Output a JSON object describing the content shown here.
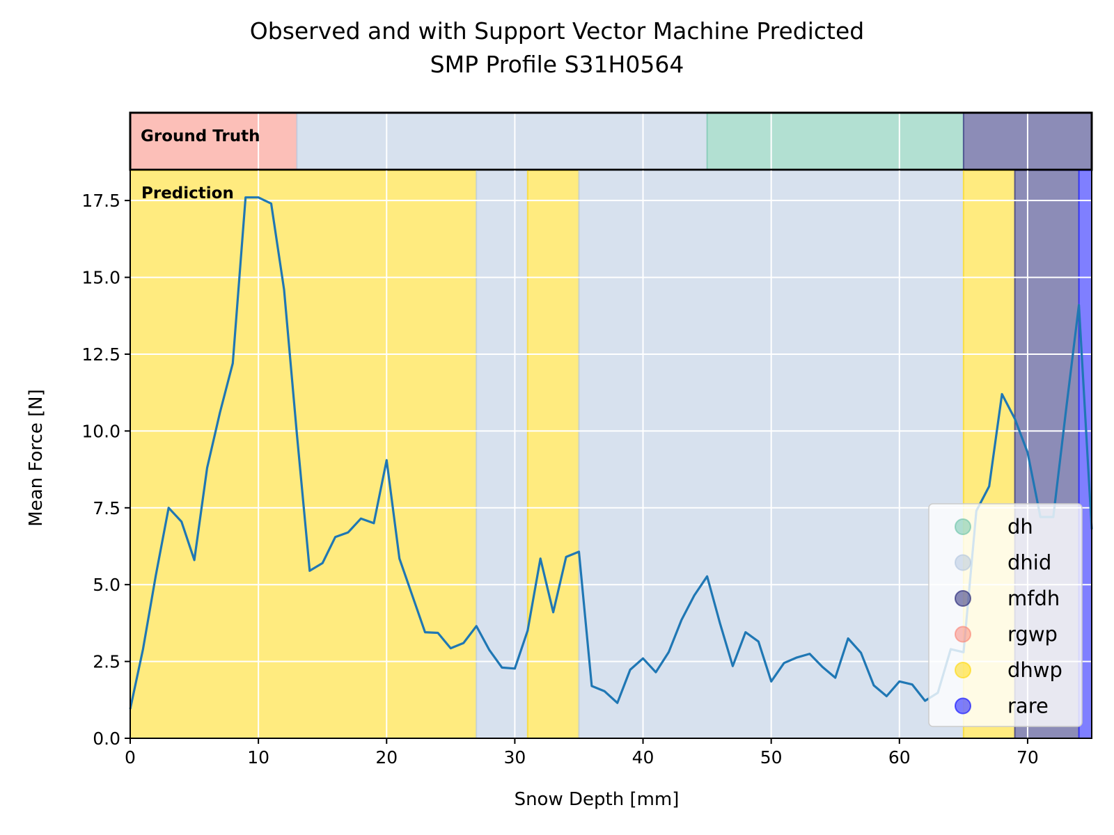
{
  "chart_data": {
    "type": "line",
    "title": "Observed and with Support Vector Machine Predicted",
    "subtitle": "SMP Profile S31H0564",
    "xlabel": "Snow Depth [mm]",
    "ylabel": "Mean Force [N]",
    "xlim": [
      0,
      75
    ],
    "ylim": [
      0,
      18.5
    ],
    "x_ticks": [
      0,
      10,
      20,
      30,
      40,
      50,
      60,
      70
    ],
    "x_tick_labels": [
      "0",
      "10",
      "20",
      "30",
      "40",
      "50",
      "60",
      "70"
    ],
    "y_ticks": [
      0,
      2.5,
      5,
      7.5,
      10,
      12.5,
      15,
      17.5
    ],
    "y_tick_labels": [
      "0.0",
      "2.5",
      "5.0",
      "7.5",
      "10.0",
      "12.5",
      "15.0",
      "17.5"
    ],
    "grid": true,
    "line_color": "#1f77b4",
    "series": [
      {
        "x": [
          0,
          1,
          2,
          3,
          4,
          5,
          6,
          7,
          8,
          9,
          10,
          11,
          12,
          13,
          14,
          15,
          16,
          17,
          18,
          19,
          20,
          21,
          22,
          23,
          24,
          25,
          26,
          27,
          28,
          29,
          30,
          31,
          32,
          33,
          34,
          35,
          36,
          37,
          38,
          39,
          40,
          41,
          42,
          43,
          44,
          45,
          46,
          47,
          48,
          49,
          50,
          51,
          52,
          53,
          54,
          55,
          56,
          57,
          58,
          59,
          60,
          61,
          62,
          63,
          64,
          65,
          66,
          67,
          68,
          69,
          70,
          71,
          72,
          73,
          74,
          75
        ],
        "values": [
          0.95,
          2.9,
          5.3,
          7.5,
          7.05,
          5.8,
          8.8,
          10.6,
          12.2,
          17.6,
          17.6,
          17.4,
          14.6,
          9.9,
          5.45,
          5.7,
          6.55,
          6.7,
          7.15,
          7.0,
          9.05,
          5.85,
          4.65,
          3.45,
          3.43,
          2.93,
          3.1,
          3.65,
          2.88,
          2.3,
          2.27,
          3.5,
          5.85,
          4.1,
          5.9,
          6.07,
          1.7,
          1.53,
          1.15,
          2.23,
          2.6,
          2.15,
          2.8,
          3.85,
          4.65,
          5.27,
          3.75,
          2.35,
          3.45,
          3.15,
          1.85,
          2.45,
          2.63,
          2.75,
          2.32,
          1.97,
          3.25,
          2.78,
          1.72,
          1.37,
          1.85,
          1.75,
          1.22,
          1.48,
          2.9,
          2.8,
          7.4,
          8.2,
          11.2,
          10.4,
          9.3,
          7.2,
          7.2,
          10.7,
          14.1,
          6.8
        ]
      }
    ],
    "ground_truth_label": "Ground Truth",
    "prediction_label": "Prediction",
    "ground_truth_segments": [
      {
        "start": 0,
        "end": 13,
        "label": "rgwp"
      },
      {
        "start": 13,
        "end": 45,
        "label": "dhid"
      },
      {
        "start": 45,
        "end": 65,
        "label": "dh"
      },
      {
        "start": 65,
        "end": 75,
        "label": "mfdh"
      }
    ],
    "prediction_segments": [
      {
        "start": 0,
        "end": 27,
        "label": "dhwp"
      },
      {
        "start": 27,
        "end": 31,
        "label": "dhid"
      },
      {
        "start": 31,
        "end": 35,
        "label": "dhwp"
      },
      {
        "start": 35,
        "end": 65,
        "label": "dhid"
      },
      {
        "start": 65,
        "end": 69,
        "label": "dhwp"
      },
      {
        "start": 69,
        "end": 74,
        "label": "mfdh"
      },
      {
        "start": 74,
        "end": 75,
        "label": "rare"
      }
    ],
    "legend": {
      "placement": "lower-right",
      "entries": [
        {
          "label": "dh",
          "color": "#66c2a5"
        },
        {
          "label": "dhid",
          "color": "#b0c4de"
        },
        {
          "label": "mfdh",
          "color": "#191970"
        },
        {
          "label": "rgwp",
          "color": "#fa8072"
        },
        {
          "label": "dhwp",
          "color": "#ffd700"
        },
        {
          "label": "rare",
          "color": "#0000ff"
        }
      ]
    }
  }
}
